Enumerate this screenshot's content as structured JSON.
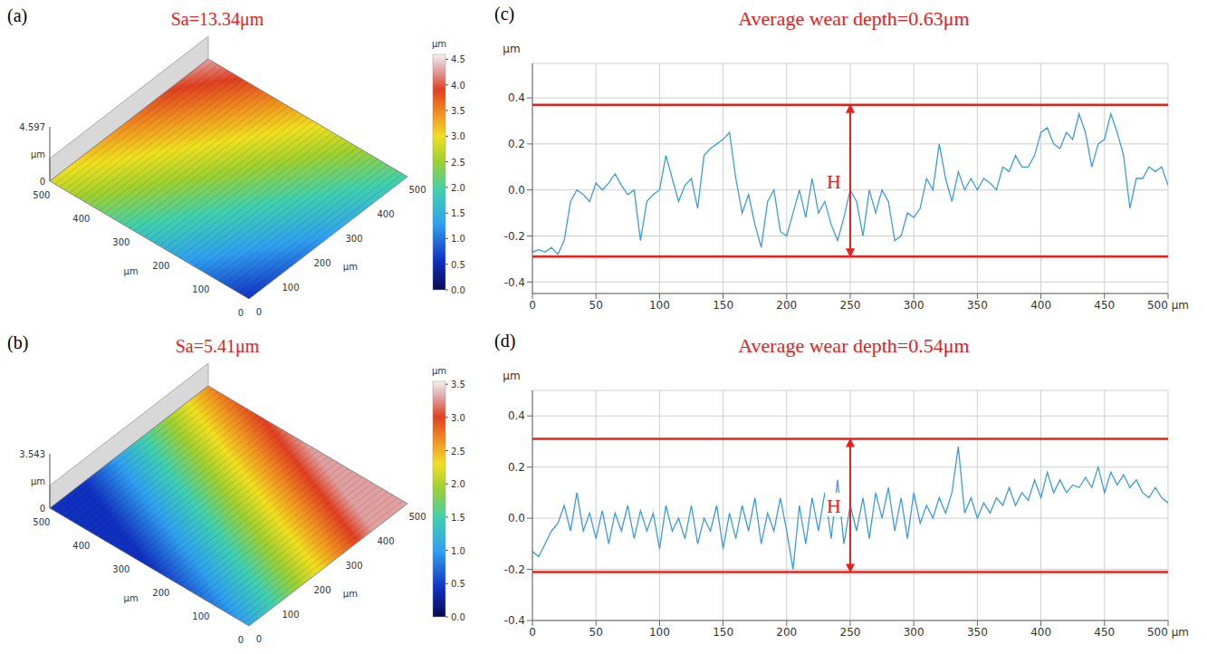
{
  "chart_data": [
    {
      "panel": "(a)",
      "type": "surface",
      "title": "Sa=13.34μm",
      "xlim": [
        0,
        500
      ],
      "xticks": [
        0,
        100,
        200,
        300,
        400,
        500
      ],
      "xlabel": "μm",
      "ylim": [
        0,
        500
      ],
      "yticks": [
        0,
        100,
        200,
        300,
        400,
        500
      ],
      "ylabel": "μm",
      "zlim": [
        0,
        4.597
      ],
      "zticks": [
        0,
        4.597
      ],
      "zlabel": "μm",
      "colorbar": {
        "range": [
          0,
          4.597
        ],
        "ticks": [
          {
            "value": 0,
            "label": "0.0"
          },
          0.5,
          {
            "value": 1,
            "label": "1.0"
          },
          1.5,
          {
            "value": 2,
            "label": "2.0"
          },
          2.5,
          {
            "value": 3,
            "label": "3.0"
          },
          3.5,
          {
            "value": 4,
            "label": "4.0"
          },
          4.5
        ],
        "label": "μm"
      }
    },
    {
      "panel": "(b)",
      "type": "surface",
      "title": "Sa=5.41μm",
      "xlim": [
        0,
        500
      ],
      "xticks": [
        0,
        100,
        200,
        300,
        400,
        500
      ],
      "xlabel": "μm",
      "ylim": [
        0,
        500
      ],
      "yticks": [
        0,
        100,
        200,
        300,
        400,
        500
      ],
      "ylabel": "μm",
      "zlim": [
        0,
        3.543
      ],
      "zticks": [
        0,
        3.543
      ],
      "zlabel": "μm",
      "colorbar": {
        "range": [
          0,
          3.543
        ],
        "ticks": [
          {
            "value": 0,
            "label": "0.0"
          },
          0.5,
          {
            "value": 1,
            "label": "1.0"
          },
          1.5,
          {
            "value": 2,
            "label": "2.0"
          },
          2.5,
          {
            "value": 3,
            "label": "3.0"
          },
          3.5
        ],
        "label": "μm"
      }
    },
    {
      "panel": "(c)",
      "type": "line",
      "title": "Average wear depth=0.63μm",
      "color": "#3d9be0",
      "grid": true,
      "x": [
        0,
        5,
        10,
        15,
        20,
        25,
        30,
        35,
        40,
        45,
        50,
        55,
        60,
        65,
        70,
        75,
        80,
        85,
        90,
        95,
        100,
        105,
        110,
        115,
        120,
        125,
        130,
        135,
        140,
        145,
        150,
        155,
        160,
        165,
        170,
        175,
        180,
        185,
        190,
        195,
        200,
        205,
        210,
        215,
        220,
        225,
        230,
        235,
        240,
        245,
        250,
        255,
        260,
        265,
        270,
        275,
        280,
        285,
        290,
        295,
        300,
        305,
        310,
        315,
        320,
        325,
        330,
        335,
        340,
        345,
        350,
        355,
        360,
        365,
        370,
        375,
        380,
        385,
        390,
        395,
        400,
        405,
        410,
        415,
        420,
        425,
        430,
        435,
        440,
        445,
        450,
        455,
        460,
        465,
        470,
        475,
        480,
        485,
        490,
        495,
        500
      ],
      "values": [
        -0.27,
        -0.26,
        -0.27,
        -0.25,
        -0.28,
        -0.22,
        -0.05,
        0.0,
        -0.02,
        -0.05,
        0.03,
        0.0,
        0.03,
        0.07,
        0.02,
        -0.02,
        0.0,
        -0.22,
        -0.05,
        -0.02,
        0.0,
        0.15,
        0.05,
        -0.05,
        0.02,
        0.05,
        -0.08,
        0.15,
        0.18,
        0.2,
        0.22,
        0.25,
        0.05,
        -0.1,
        -0.02,
        -0.15,
        -0.25,
        -0.05,
        0.0,
        -0.18,
        -0.2,
        -0.1,
        0.0,
        -0.12,
        0.05,
        -0.1,
        -0.05,
        -0.15,
        -0.22,
        -0.12,
        0.0,
        -0.05,
        -0.2,
        0.0,
        -0.1,
        0.0,
        -0.05,
        -0.22,
        -0.2,
        -0.1,
        -0.12,
        -0.08,
        0.05,
        0.0,
        0.2,
        0.05,
        -0.05,
        0.08,
        0.0,
        0.05,
        0.0,
        0.05,
        0.03,
        0.0,
        0.1,
        0.08,
        0.15,
        0.1,
        0.1,
        0.15,
        0.25,
        0.27,
        0.2,
        0.18,
        0.25,
        0.22,
        0.33,
        0.25,
        0.1,
        0.2,
        0.22,
        0.33,
        0.25,
        0.15,
        -0.08,
        0.05,
        0.05,
        0.1,
        0.08,
        0.1,
        0.02
      ],
      "xlim": [
        0,
        500
      ],
      "xticks": [
        0,
        50,
        100,
        150,
        200,
        250,
        300,
        350,
        400,
        450,
        {
          "value": 500,
          "label": "500 μm"
        }
      ],
      "ylim": [
        -0.45,
        0.55
      ],
      "yticks": [
        -0.4,
        -0.2,
        {
          "value": 0,
          "label": "0.0"
        },
        0.2,
        0.4
      ],
      "ylabel": "μm",
      "reference_lines": [
        0.37,
        -0.29
      ],
      "annotations": [
        {
          "text": "H",
          "x": 250
        }
      ]
    },
    {
      "panel": "(d)",
      "type": "line",
      "title": "Average wear depth=0.54μm",
      "color": "#3d9be0",
      "grid": true,
      "x": [
        0,
        5,
        10,
        15,
        20,
        25,
        30,
        35,
        40,
        45,
        50,
        55,
        60,
        65,
        70,
        75,
        80,
        85,
        90,
        95,
        100,
        105,
        110,
        115,
        120,
        125,
        130,
        135,
        140,
        145,
        150,
        155,
        160,
        165,
        170,
        175,
        180,
        185,
        190,
        195,
        200,
        205,
        210,
        215,
        220,
        225,
        230,
        235,
        240,
        245,
        250,
        255,
        260,
        265,
        270,
        275,
        280,
        285,
        290,
        295,
        300,
        305,
        310,
        315,
        320,
        325,
        330,
        335,
        340,
        345,
        350,
        355,
        360,
        365,
        370,
        375,
        380,
        385,
        390,
        395,
        400,
        405,
        410,
        415,
        420,
        425,
        430,
        435,
        440,
        445,
        450,
        455,
        460,
        465,
        470,
        475,
        480,
        485,
        490,
        495,
        500
      ],
      "values": [
        -0.13,
        -0.15,
        -0.1,
        -0.05,
        -0.02,
        0.05,
        -0.05,
        0.1,
        -0.05,
        0.02,
        -0.08,
        0.03,
        -0.1,
        0.02,
        -0.05,
        0.05,
        -0.08,
        0.03,
        -0.05,
        0.02,
        -0.12,
        0.05,
        -0.05,
        0.0,
        -0.08,
        0.05,
        -0.1,
        0.0,
        -0.05,
        0.05,
        -0.12,
        0.02,
        -0.08,
        0.05,
        -0.05,
        0.08,
        -0.1,
        0.02,
        -0.05,
        0.08,
        -0.05,
        -0.2,
        0.05,
        -0.1,
        0.08,
        -0.05,
        0.1,
        -0.08,
        0.15,
        -0.1,
        0.05,
        -0.05,
        0.08,
        -0.08,
        0.1,
        0.0,
        0.12,
        -0.05,
        0.08,
        -0.08,
        0.1,
        -0.02,
        0.05,
        0.0,
        0.08,
        0.02,
        0.1,
        0.28,
        0.02,
        0.08,
        0.0,
        0.06,
        0.02,
        0.08,
        0.05,
        0.12,
        0.05,
        0.1,
        0.07,
        0.15,
        0.08,
        0.18,
        0.1,
        0.15,
        0.1,
        0.13,
        0.12,
        0.16,
        0.12,
        0.2,
        0.1,
        0.18,
        0.13,
        0.17,
        0.12,
        0.15,
        0.1,
        0.08,
        0.12,
        0.08,
        0.06
      ],
      "xlim": [
        0,
        500
      ],
      "xticks": [
        0,
        50,
        100,
        150,
        200,
        250,
        300,
        350,
        400,
        450,
        {
          "value": 500,
          "label": "500 μm"
        }
      ],
      "ylim": [
        -0.4,
        0.5
      ],
      "yticks": [
        -0.4,
        -0.2,
        {
          "value": 0,
          "label": "0.0"
        },
        0.2,
        0.4
      ],
      "ylabel": "μm",
      "reference_lines": [
        0.31,
        -0.21
      ],
      "annotations": [
        {
          "text": "H",
          "x": 250
        }
      ]
    }
  ]
}
